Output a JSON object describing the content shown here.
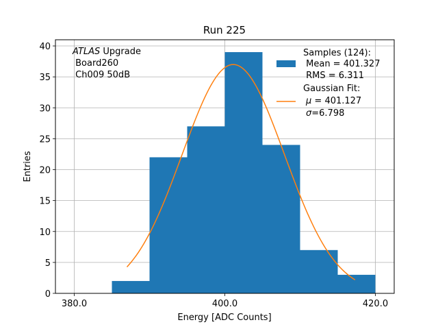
{
  "chart_data": {
    "type": "bar",
    "title": "Run 225",
    "xlabel": "Energy [ADC Counts]",
    "ylabel": "Entries",
    "xlim": [
      377.5,
      422.5
    ],
    "ylim": [
      0,
      41
    ],
    "grid": true,
    "xticks": [
      380,
      400,
      420
    ],
    "xtick_labels": [
      "380.0",
      "400.0",
      "420.0"
    ],
    "yticks": [
      0,
      5,
      10,
      15,
      20,
      25,
      30,
      35,
      40
    ],
    "ytick_labels": [
      "0",
      "5",
      "10",
      "15",
      "20",
      "25",
      "30",
      "35",
      "40"
    ],
    "histogram": {
      "name": "Samples",
      "color": "#1f77b4",
      "bins": [
        {
          "x0": 385.0,
          "x1": 390.0,
          "count": 2
        },
        {
          "x0": 390.0,
          "x1": 395.0,
          "count": 22
        },
        {
          "x0": 395.0,
          "x1": 400.0,
          "count": 27
        },
        {
          "x0": 400.0,
          "x1": 405.0,
          "count": 39
        },
        {
          "x0": 405.0,
          "x1": 410.0,
          "count": 24
        },
        {
          "x0": 410.0,
          "x1": 415.0,
          "count": 7
        },
        {
          "x0": 415.0,
          "x1": 420.0,
          "count": 3
        }
      ]
    },
    "fit": {
      "name": "Gaussian Fit",
      "color": "#ff7f0e",
      "mu": 401.127,
      "sigma": 6.798,
      "amplitude": 37.0,
      "x_range": [
        387,
        417.3
      ]
    },
    "annotation": {
      "line1_italic": "ATLAS",
      "line1_rest": " Upgrade",
      "line2": " Board260",
      "line3": " Ch009 50dB",
      "position": "top-left"
    },
    "legend": {
      "position": "top-right",
      "hist_title": "Samples (124):",
      "hist_mean": " Mean = 401.327",
      "hist_rms": " RMS = 6.311",
      "fit_title": "Gaussian Fit:",
      "fit_mu_symbol": "μ",
      "fit_mu_text": " = 401.127",
      "fit_sigma_symbol": "σ",
      "fit_sigma_text": "=6.798"
    }
  }
}
